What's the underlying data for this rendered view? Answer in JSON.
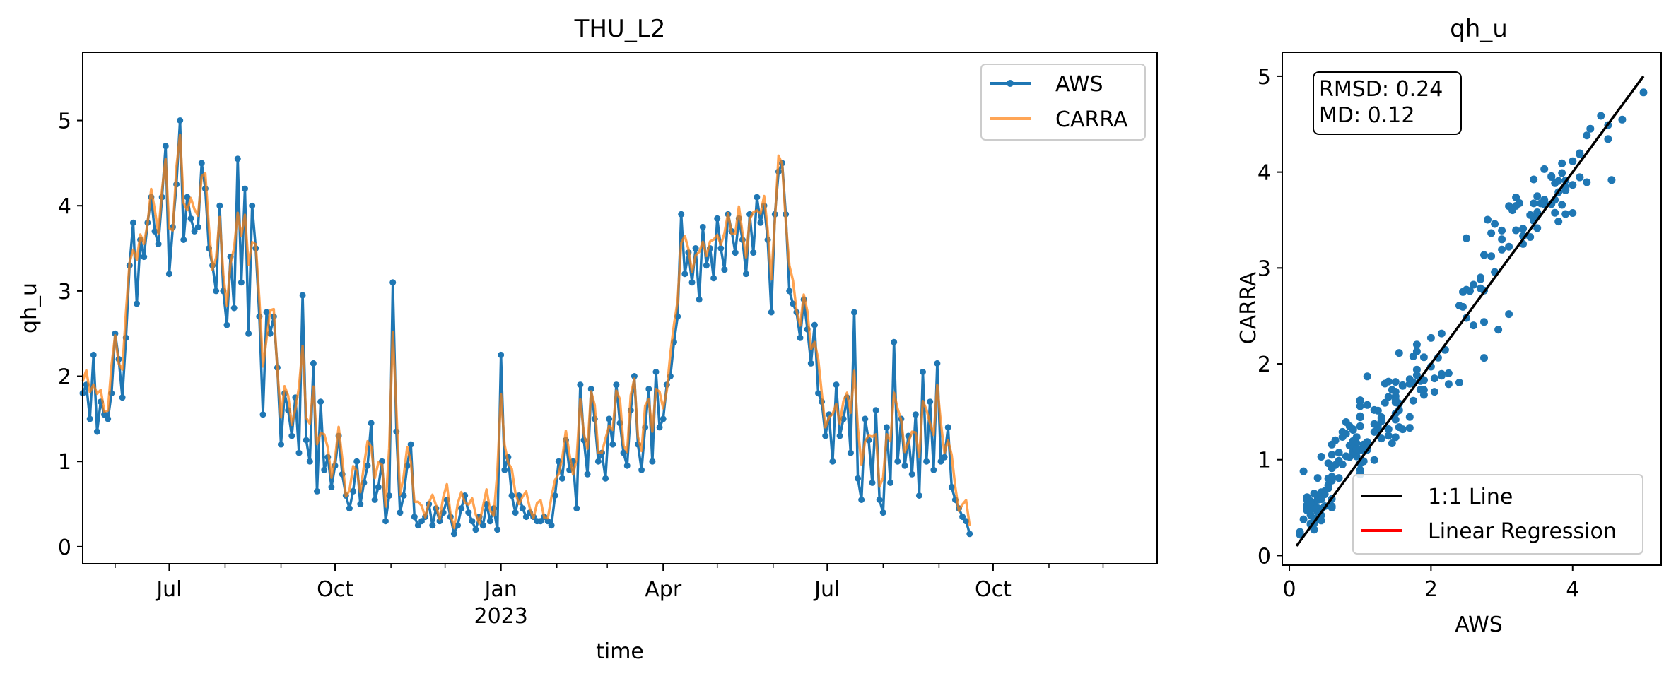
{
  "colors": {
    "aws": "#1f77b4",
    "carra": "#ff7f0e",
    "one_to_one": "#000000",
    "regression": "#ff0000"
  },
  "chart_data": [
    {
      "type": "line",
      "title": "THU_L2",
      "xlabel": "time",
      "ylabel": "qh_u",
      "x_axis": "date",
      "xlim": [
        "2022-05-14",
        "2023-12-31"
      ],
      "ylim": [
        -0.2,
        5.8
      ],
      "yticks": [
        0,
        1,
        2,
        3,
        4,
        5
      ],
      "xticks": [
        {
          "date": "2022-07-01",
          "label": "Jul",
          "sublabel": ""
        },
        {
          "date": "2022-10-01",
          "label": "Oct",
          "sublabel": ""
        },
        {
          "date": "2023-01-01",
          "label": "Jan",
          "sublabel": "2023"
        },
        {
          "date": "2023-04-01",
          "label": "Apr",
          "sublabel": ""
        },
        {
          "date": "2023-07-01",
          "label": "Jul",
          "sublabel": ""
        },
        {
          "date": "2023-10-01",
          "label": "Oct",
          "sublabel": ""
        }
      ],
      "grid": false,
      "legend": "top-right",
      "series": [
        {
          "name": "AWS",
          "style": "line-marker"
        },
        {
          "name": "CARRA",
          "style": "line"
        }
      ],
      "x_start": "2022-05-14",
      "x_step_days": 2,
      "aws_values": [
        1.8,
        1.9,
        1.5,
        2.25,
        1.35,
        1.7,
        1.55,
        1.5,
        1.8,
        2.5,
        2.2,
        1.75,
        2.45,
        3.3,
        3.8,
        2.85,
        3.6,
        3.4,
        3.8,
        4.1,
        3.7,
        3.55,
        4.1,
        4.7,
        3.2,
        3.75,
        4.25,
        5.0,
        3.6,
        4.1,
        3.85,
        3.7,
        3.75,
        4.5,
        4.2,
        3.5,
        3.3,
        3.0,
        4.0,
        3.0,
        2.6,
        3.4,
        2.8,
        4.55,
        3.1,
        4.2,
        2.5,
        4.0,
        3.5,
        2.7,
        1.55,
        2.75,
        2.5,
        2.7,
        2.1,
        1.2,
        1.8,
        1.6,
        1.3,
        1.75,
        1.1,
        2.95,
        1.25,
        1.0,
        2.15,
        0.65,
        1.7,
        0.9,
        1.05,
        0.7,
        0.95,
        1.3,
        0.85,
        0.6,
        0.45,
        0.65,
        1.0,
        0.5,
        0.75,
        0.95,
        1.45,
        0.55,
        0.7,
        1.0,
        0.3,
        0.6,
        3.1,
        1.35,
        0.4,
        0.6,
        0.95,
        1.2,
        0.35,
        0.25,
        0.3,
        0.35,
        0.5,
        0.25,
        0.45,
        0.3,
        0.4,
        0.55,
        0.35,
        0.15,
        0.25,
        0.45,
        0.6,
        0.4,
        0.3,
        0.2,
        0.35,
        0.25,
        0.5,
        0.3,
        0.45,
        0.2,
        2.25,
        0.9,
        1.05,
        0.6,
        0.4,
        0.6,
        0.45,
        0.35,
        0.4,
        0.35,
        0.3,
        0.3,
        0.35,
        0.3,
        0.25,
        0.6,
        1.0,
        0.8,
        1.25,
        0.9,
        1.0,
        0.45,
        1.9,
        1.25,
        0.85,
        1.85,
        1.5,
        1.0,
        1.1,
        0.8,
        1.5,
        1.2,
        1.9,
        1.45,
        1.1,
        0.95,
        1.6,
        2.0,
        1.2,
        0.9,
        1.4,
        1.85,
        1.0,
        2.05,
        1.4,
        1.5,
        1.9,
        2.0,
        2.4,
        2.7,
        3.9,
        3.2,
        3.45,
        3.1,
        3.5,
        2.9,
        3.75,
        3.3,
        3.5,
        3.15,
        3.85,
        3.5,
        3.25,
        3.9,
        3.7,
        3.45,
        3.85,
        3.6,
        3.2,
        3.9,
        3.45,
        4.1,
        3.8,
        4.0,
        3.6,
        2.75,
        3.9,
        4.4,
        4.5,
        3.9,
        3.0,
        2.85,
        2.75,
        2.45,
        2.9,
        2.55,
        2.15,
        2.6,
        1.8,
        1.7,
        1.3,
        1.55,
        1.0,
        1.9,
        1.3,
        1.5,
        1.75,
        1.1,
        2.75,
        0.8,
        0.55,
        1.5,
        1.25,
        0.75,
        1.6,
        0.55,
        0.4,
        1.4,
        0.75,
        2.4,
        1.0,
        1.5,
        0.95,
        1.3,
        0.85,
        1.55,
        0.6,
        2.05,
        1.0,
        1.7,
        0.9,
        2.15,
        1.0,
        1.05,
        1.4,
        0.7,
        0.55,
        0.45,
        0.35,
        0.3,
        0.15
      ]
    },
    {
      "type": "scatter",
      "title": "qh_u",
      "xlabel": "AWS",
      "ylabel": "CARRA",
      "xlim": [
        -0.1,
        5.25
      ],
      "ylim": [
        -0.1,
        5.25
      ],
      "xticks": [
        0,
        2,
        4
      ],
      "yticks": [
        0,
        1,
        2,
        3,
        4,
        5
      ],
      "grid": false,
      "stats": {
        "rmsd": "RMSD: 0.24",
        "md": "MD: 0.12"
      },
      "legend": "bottom-right",
      "lines": [
        {
          "name": "1:1 Line",
          "x": [
            0.1,
            5.0
          ],
          "y": [
            0.1,
            5.0
          ]
        },
        {
          "name": "Linear Regression",
          "x": [
            0.1,
            5.0
          ],
          "y": [
            0.1,
            5.0
          ]
        }
      ]
    }
  ]
}
